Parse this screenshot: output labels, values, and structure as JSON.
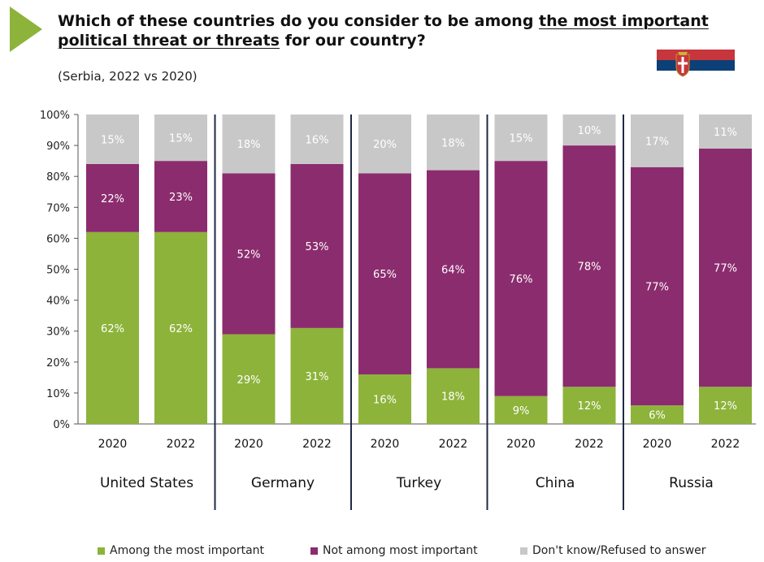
{
  "title_parts": {
    "a": "Which of these countries do you consider to be among ",
    "b": "the most important",
    "c": "political threat or threats",
    "d": " for our country?"
  },
  "subtitle": "(Serbia, 2022 vs 2020)",
  "colors": {
    "important": "#8db33a",
    "not_important": "#8b2c6e",
    "dont_know": "#c8c8c8",
    "arrow": "#8db33a",
    "flag_red": "#c6363c",
    "flag_blue": "#0c4076",
    "flag_white": "#ffffff"
  },
  "icons": {
    "header_marker": "green-triangle-icon",
    "flag": "serbia-flag-icon"
  },
  "chart_data": {
    "type": "bar",
    "stacked": true,
    "ylim": [
      0,
      100
    ],
    "yticks": [
      "0%",
      "10%",
      "20%",
      "30%",
      "40%",
      "50%",
      "60%",
      "70%",
      "80%",
      "90%",
      "100%"
    ],
    "groups": [
      "United States",
      "Germany",
      "Turkey",
      "China",
      "Russia"
    ],
    "categories": [
      "2020",
      "2022",
      "2020",
      "2022",
      "2020",
      "2022",
      "2020",
      "2022",
      "2020",
      "2022"
    ],
    "series": [
      {
        "name": "Among the most important",
        "values": [
          62,
          62,
          29,
          31,
          16,
          18,
          9,
          12,
          6,
          12
        ],
        "labels": [
          "62%",
          "62%",
          "29%",
          "31%",
          "16%",
          "18%",
          "9%",
          "12%",
          "6%",
          "12%"
        ]
      },
      {
        "name": "Not among most important",
        "values": [
          22,
          23,
          52,
          53,
          65,
          64,
          76,
          78,
          77,
          77
        ],
        "labels": [
          "22%",
          "23%",
          "52%",
          "53%",
          "65%",
          "64%",
          "76%",
          "78%",
          "77%",
          "77%"
        ]
      },
      {
        "name": "Don't know/Refused to answer",
        "values": [
          15,
          15,
          18,
          16,
          20,
          18,
          15,
          10,
          17,
          11
        ],
        "labels": [
          "15%",
          "15%",
          "18%",
          "16%",
          "20%",
          "18%",
          "15%",
          "10%",
          "17%",
          "11%"
        ]
      }
    ],
    "legend_position": "bottom",
    "grid": false
  }
}
